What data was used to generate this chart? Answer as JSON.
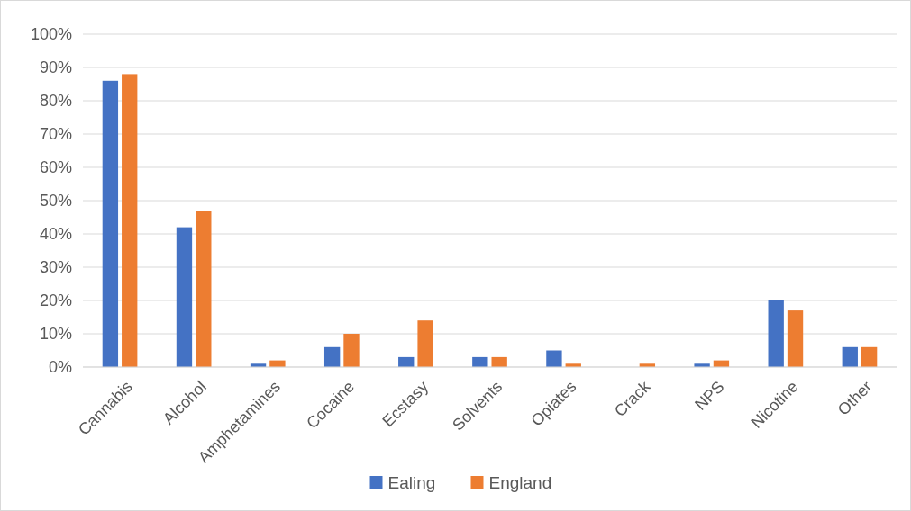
{
  "chart_data": {
    "type": "bar",
    "categories": [
      "Cannabis",
      "Alcohol",
      "Amphetamines",
      "Cocaine",
      "Ecstasy",
      "Solvents",
      "Opiates",
      "Crack",
      "NPS",
      "Nicotine",
      "Other"
    ],
    "series": [
      {
        "name": "Ealing",
        "color": "#4472c4",
        "values": [
          86,
          42,
          1,
          6,
          3,
          3,
          5,
          0,
          1,
          20,
          6
        ]
      },
      {
        "name": "England",
        "color": "#ed7d31",
        "values": [
          88,
          47,
          2,
          10,
          14,
          3,
          1,
          1,
          2,
          17,
          6
        ]
      }
    ],
    "ylim": [
      0,
      100
    ],
    "yticks": [
      {
        "value": 0,
        "label": "0%"
      },
      {
        "value": 10,
        "label": "10%"
      },
      {
        "value": 20,
        "label": "20%"
      },
      {
        "value": 30,
        "label": "30%"
      },
      {
        "value": 40,
        "label": "40%"
      },
      {
        "value": 50,
        "label": "50%"
      },
      {
        "value": 60,
        "label": "60%"
      },
      {
        "value": 70,
        "label": "70%"
      },
      {
        "value": 80,
        "label": "80%"
      },
      {
        "value": 90,
        "label": "90%"
      },
      {
        "value": 100,
        "label": "100%"
      }
    ],
    "grid": "y",
    "legend": "bottom"
  }
}
